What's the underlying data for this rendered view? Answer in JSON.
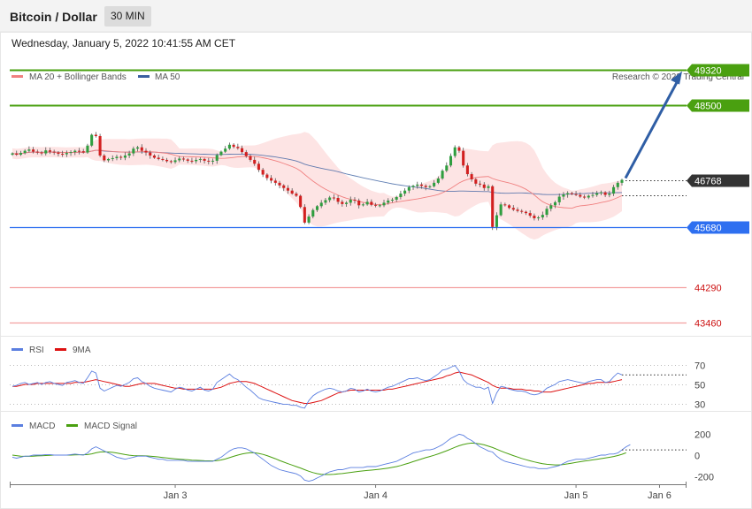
{
  "header": {
    "title": "Bitcoin / Dollar",
    "timeframe": "30 MIN"
  },
  "datetime": "Wednesday, January 5, 2022 10:41:55 AM CET",
  "credit": "Research © 2022 Trading Central",
  "colors": {
    "ma20": "#f08080",
    "ma50": "#3a5fa0",
    "resistance": "#4aa010",
    "support_blue": "#2e6ff0",
    "support_red": "#e05050",
    "price_tag": "#333333",
    "rsi": "#5b7fe0",
    "rsi_ma": "#dd1111",
    "macd": "#5b7fe0",
    "macd_signal": "#4aa010",
    "band_fill": "#fde4e4",
    "candle_up": "#2f9e3f",
    "candle_down": "#d21f1f"
  },
  "chart_data": [
    {
      "type": "candlestick",
      "name": "price",
      "legend": [
        {
          "label": "MA 20 + Bollinger Bands",
          "color": "#f08080"
        },
        {
          "label": "MA 50",
          "color": "#3a5fa0"
        }
      ],
      "legend_position": "top-left",
      "ylim": [
        43000,
        49700
      ],
      "x_ticks": [
        "Jan 3",
        "Jan 4",
        "Jan 5",
        "Jan 6"
      ],
      "x_tick_index": [
        39,
        87,
        135,
        155
      ],
      "levels": [
        {
          "value": 49320,
          "label": "49320",
          "kind": "resistance"
        },
        {
          "value": 48500,
          "label": "48500",
          "kind": "resistance"
        },
        {
          "value": 46768,
          "label": "46768",
          "kind": "last"
        },
        {
          "value": 45680,
          "label": "45680",
          "kind": "support_blue"
        },
        {
          "value": 44290,
          "label": "44290",
          "kind": "support_red"
        },
        {
          "value": 43460,
          "label": "43460",
          "kind": "support_red"
        }
      ],
      "projection": {
        "from": 46768,
        "to": 49320
      },
      "close": [
        47380,
        47350,
        47390,
        47440,
        47470,
        47420,
        47400,
        47380,
        47450,
        47420,
        47400,
        47370,
        47360,
        47390,
        47410,
        47440,
        47430,
        47400,
        47560,
        47810,
        47780,
        47330,
        47220,
        47250,
        47270,
        47300,
        47280,
        47330,
        47380,
        47490,
        47520,
        47440,
        47400,
        47330,
        47280,
        47250,
        47230,
        47200,
        47180,
        47220,
        47260,
        47240,
        47210,
        47200,
        47230,
        47250,
        47210,
        47190,
        47210,
        47340,
        47420,
        47490,
        47580,
        47530,
        47500,
        47410,
        47320,
        47230,
        47140,
        47000,
        46890,
        46810,
        46750,
        46700,
        46640,
        46580,
        46520,
        46450,
        46400,
        46140,
        45780,
        45920,
        46070,
        46160,
        46240,
        46300,
        46360,
        46350,
        46260,
        46210,
        46240,
        46310,
        46290,
        46180,
        46200,
        46260,
        46190,
        46170,
        46180,
        46240,
        46290,
        46310,
        46370,
        46450,
        46520,
        46600,
        46630,
        46660,
        46630,
        46600,
        46620,
        46700,
        46800,
        46980,
        47100,
        47320,
        47520,
        47440,
        47100,
        46900,
        46780,
        46680,
        46660,
        46580,
        46620,
        45680,
        45950,
        46200,
        46180,
        46120,
        46080,
        46050,
        46030,
        46000,
        45940,
        45880,
        45900,
        45960,
        46100,
        46180,
        46250,
        46380,
        46430,
        46460,
        46440,
        46420,
        46380,
        46360,
        46400,
        46420,
        46460,
        46480,
        46420,
        46450,
        46600,
        46700,
        46768
      ]
    },
    {
      "type": "line",
      "name": "RSI",
      "legend": [
        {
          "label": "RSI",
          "color": "#5b7fe0"
        },
        {
          "label": "9MA",
          "color": "#dd1111"
        }
      ],
      "y_ticks": [
        "70",
        "50",
        "30"
      ],
      "y_tick_values": [
        70,
        50,
        30
      ],
      "ylim": [
        24,
        76
      ],
      "series": [
        {
          "values": [
            48,
            49,
            51,
            52,
            50,
            51,
            52,
            50,
            52,
            53,
            51,
            50,
            49,
            52,
            53,
            54,
            52,
            51,
            57,
            64,
            62,
            46,
            43,
            45,
            47,
            49,
            48,
            50,
            52,
            56,
            57,
            53,
            51,
            48,
            46,
            45,
            44,
            43,
            42,
            45,
            47,
            46,
            44,
            43,
            45,
            47,
            44,
            43,
            45,
            52,
            55,
            58,
            61,
            57,
            55,
            51,
            47,
            44,
            40,
            36,
            34,
            33,
            32,
            31,
            30,
            29,
            29,
            28,
            28,
            26,
            25,
            33,
            38,
            41,
            43,
            45,
            46,
            45,
            43,
            42,
            43,
            46,
            45,
            42,
            43,
            45,
            43,
            42,
            43,
            45,
            47,
            48,
            50,
            52,
            54,
            56,
            56,
            57,
            55,
            54,
            55,
            58,
            61,
            65,
            66,
            68,
            70,
            64,
            55,
            51,
            49,
            47,
            47,
            45,
            47,
            30,
            41,
            48,
            47,
            45,
            44,
            43,
            43,
            42,
            40,
            39,
            40,
            42,
            46,
            48,
            50,
            53,
            54,
            55,
            54,
            53,
            52,
            51,
            53,
            54,
            55,
            55,
            52,
            53,
            58,
            62,
            60
          ]
        },
        {
          "values": [
            48,
            48,
            49,
            50,
            50,
            50,
            51,
            51,
            51,
            51,
            51,
            51,
            51,
            51,
            51,
            52,
            52,
            52,
            53,
            54,
            55,
            54,
            53,
            52,
            51,
            50,
            49,
            48,
            48,
            49,
            50,
            51,
            51,
            51,
            51,
            50,
            49,
            48,
            47,
            46,
            46,
            45,
            45,
            45,
            45,
            45,
            45,
            45,
            45,
            46,
            47,
            49,
            51,
            52,
            53,
            53,
            53,
            52,
            51,
            49,
            47,
            45,
            43,
            41,
            39,
            37,
            35,
            33,
            32,
            31,
            30,
            30,
            31,
            32,
            33,
            35,
            37,
            39,
            41,
            42,
            43,
            44,
            44,
            44,
            44,
            44,
            44,
            44,
            44,
            44,
            45,
            45,
            46,
            47,
            48,
            49,
            50,
            51,
            52,
            53,
            54,
            55,
            56,
            57,
            59,
            60,
            62,
            63,
            62,
            61,
            60,
            58,
            56,
            54,
            52,
            49,
            47,
            46,
            46,
            46,
            45,
            45,
            45,
            44,
            44,
            43,
            43,
            42,
            42,
            42,
            43,
            44,
            45,
            46,
            47,
            48,
            49,
            50,
            51,
            51,
            52,
            52,
            52,
            52,
            53,
            54,
            55
          ]
        }
      ]
    },
    {
      "type": "line",
      "name": "MACD",
      "legend": [
        {
          "label": "MACD",
          "color": "#5b7fe0"
        },
        {
          "label": "MACD Signal",
          "color": "#4aa010"
        }
      ],
      "y_ticks": [
        "200",
        "0",
        "-200"
      ],
      "y_tick_values": [
        200,
        0,
        -200
      ],
      "ylim": [
        -280,
        280
      ],
      "series": [
        {
          "values": [
            -20,
            -30,
            -20,
            -10,
            -10,
            0,
            0,
            0,
            5,
            5,
            0,
            0,
            0,
            0,
            5,
            10,
            5,
            0,
            20,
            60,
            80,
            60,
            40,
            20,
            0,
            -20,
            -30,
            -40,
            -30,
            -20,
            -10,
            -10,
            -10,
            -20,
            -30,
            -40,
            -40,
            -50,
            -50,
            -50,
            -50,
            -50,
            -60,
            -60,
            -60,
            -60,
            -60,
            -60,
            -60,
            -40,
            -20,
            10,
            40,
            60,
            70,
            70,
            60,
            40,
            20,
            -10,
            -40,
            -70,
            -100,
            -120,
            -140,
            -150,
            -160,
            -170,
            -180,
            -200,
            -240,
            -250,
            -240,
            -220,
            -200,
            -180,
            -160,
            -150,
            -140,
            -140,
            -130,
            -120,
            -120,
            -120,
            -120,
            -110,
            -110,
            -110,
            -100,
            -90,
            -80,
            -70,
            -60,
            -40,
            -20,
            0,
            20,
            30,
            40,
            50,
            50,
            60,
            80,
            100,
            130,
            160,
            180,
            200,
            190,
            160,
            140,
            110,
            80,
            60,
            40,
            30,
            -10,
            -40,
            -60,
            -70,
            -80,
            -90,
            -100,
            -110,
            -120,
            -120,
            -130,
            -130,
            -130,
            -120,
            -110,
            -100,
            -80,
            -60,
            -50,
            -40,
            -40,
            -40,
            -30,
            -20,
            -10,
            0,
            0,
            10,
            10,
            20,
            50,
            80,
            100
          ]
        },
        {
          "values": [
            0,
            -5,
            -10,
            -12,
            -12,
            -10,
            -8,
            -6,
            -4,
            -2,
            0,
            0,
            0,
            0,
            0,
            2,
            3,
            3,
            5,
            12,
            22,
            30,
            32,
            30,
            26,
            20,
            13,
            5,
            -1,
            -5,
            -6,
            -7,
            -8,
            -10,
            -14,
            -18,
            -23,
            -28,
            -32,
            -36,
            -39,
            -42,
            -45,
            -48,
            -50,
            -52,
            -54,
            -55,
            -56,
            -53,
            -47,
            -37,
            -25,
            -12,
            0,
            10,
            18,
            22,
            22,
            16,
            7,
            -5,
            -20,
            -35,
            -52,
            -67,
            -82,
            -96,
            -110,
            -124,
            -140,
            -155,
            -168,
            -178,
            -184,
            -187,
            -187,
            -185,
            -181,
            -177,
            -172,
            -166,
            -161,
            -156,
            -152,
            -148,
            -144,
            -140,
            -136,
            -131,
            -125,
            -118,
            -110,
            -100,
            -88,
            -76,
            -63,
            -50,
            -37,
            -25,
            -14,
            -2,
            12,
            26,
            42,
            58,
            75,
            90,
            102,
            110,
            115,
            113,
            107,
            98,
            86,
            73,
            57,
            40,
            24,
            9,
            -5,
            -19,
            -32,
            -44,
            -55,
            -65,
            -74,
            -82,
            -88,
            -92,
            -94,
            -94,
            -90,
            -84,
            -77,
            -70,
            -64,
            -58,
            -52,
            -46,
            -40,
            -34,
            -28,
            -21,
            -14,
            -4,
            8,
            22
          ]
        }
      ]
    }
  ]
}
